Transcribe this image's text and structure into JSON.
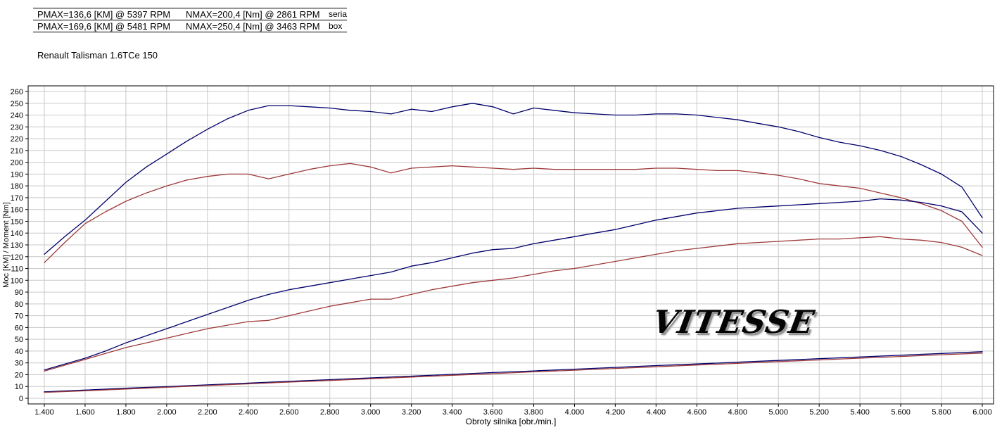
{
  "header": {
    "rows": [
      {
        "pmax": "PMAX=136,6 [KM] @ 5397 RPM",
        "nmax": "NMAX=200,4 [Nm] @ 2861 RPM",
        "tag": "seria"
      },
      {
        "pmax": "PMAX=169,6 [KM] @ 5481 RPM",
        "nmax": "NMAX=250,4 [Nm] @ 3463 RPM",
        "tag": "box"
      }
    ],
    "vehicle": "Renault Talisman 1.6TCe 150"
  },
  "watermark": {
    "text": "VITESSE"
  },
  "chart_data": {
    "type": "line",
    "title": "",
    "xlabel": "Obroty silnika [obr./min.]",
    "ylabel": "Moc [KM] / Moment [Nm]",
    "xlim": [
      1400,
      6000
    ],
    "ylim": [
      0,
      260
    ],
    "grid": true,
    "grid_color": "#c9c9c9",
    "axis_color": "#000000",
    "xticks": [
      1400,
      1600,
      1800,
      2000,
      2200,
      2400,
      2600,
      2800,
      3000,
      3200,
      3400,
      3600,
      3800,
      4000,
      4200,
      4400,
      4600,
      4800,
      5000,
      5200,
      5400,
      5600,
      5800,
      6000
    ],
    "xtick_labels": [
      "1.400",
      "1.600",
      "1.800",
      "2.000",
      "2.200",
      "2.400",
      "2.600",
      "2.800",
      "3.000",
      "3.200",
      "3.400",
      "3.600",
      "3.800",
      "4.000",
      "4.200",
      "4.400",
      "4.600",
      "4.800",
      "5.000",
      "5.200",
      "5.400",
      "5.600",
      "5.800",
      "6.000"
    ],
    "yticks": [
      0,
      10,
      20,
      30,
      40,
      50,
      60,
      70,
      80,
      90,
      100,
      110,
      120,
      130,
      140,
      150,
      160,
      170,
      180,
      190,
      200,
      210,
      220,
      230,
      240,
      250,
      260
    ],
    "x_main": [
      1400,
      1500,
      1600,
      1700,
      1800,
      1900,
      2000,
      2100,
      2200,
      2300,
      2400,
      2500,
      2600,
      2700,
      2800,
      2900,
      3000,
      3100,
      3200,
      3300,
      3400,
      3500,
      3600,
      3700,
      3800,
      3900,
      4000,
      4100,
      4200,
      4300,
      4400,
      4500,
      4600,
      4700,
      4800,
      4900,
      5000,
      5100,
      5200,
      5300,
      5400,
      5500,
      5600,
      5700,
      5800,
      5900,
      6000
    ],
    "x_aux": [
      1400,
      1600,
      1800,
      2000,
      2200,
      2400,
      2600,
      2800,
      3000,
      3200,
      3400,
      3600,
      3800,
      4000,
      4200,
      4400,
      4600,
      4800,
      5000,
      5200,
      5400,
      5600,
      5800,
      6000
    ],
    "series": [
      {
        "name": "moment-box",
        "color": "#00006b",
        "x": "x_main",
        "values": [
          122,
          137,
          151,
          167,
          183,
          196,
          207,
          218,
          228,
          237,
          244,
          248,
          248,
          247,
          246,
          244,
          243,
          241,
          245,
          243,
          247,
          250,
          247,
          241,
          246,
          244,
          242,
          241,
          240,
          240,
          241,
          241,
          240,
          238,
          236,
          233,
          230,
          226,
          221,
          217,
          214,
          210,
          205,
          198,
          190,
          179,
          153
        ]
      },
      {
        "name": "moment-seria",
        "color": "#9e3939",
        "x": "x_main",
        "values": [
          115,
          132,
          148,
          158,
          167,
          174,
          180,
          185,
          188,
          190,
          190,
          186,
          190,
          194,
          197,
          199,
          196,
          191,
          195,
          196,
          197,
          196,
          195,
          194,
          195,
          194,
          194,
          194,
          194,
          194,
          195,
          195,
          194,
          193,
          193,
          191,
          189,
          186,
          182,
          180,
          178,
          174,
          170,
          165,
          159,
          150,
          128
        ]
      },
      {
        "name": "moc-box",
        "color": "#00006b",
        "x": "x_main",
        "values": [
          24,
          29,
          34,
          40,
          47,
          53,
          59,
          65,
          71,
          77,
          83,
          88,
          92,
          95,
          98,
          101,
          104,
          107,
          112,
          115,
          119,
          123,
          126,
          127,
          131,
          134,
          137,
          140,
          143,
          147,
          151,
          154,
          157,
          159,
          161,
          162,
          163,
          164,
          165,
          166,
          167,
          169,
          168,
          166,
          163,
          158,
          140
        ]
      },
      {
        "name": "moc-seria",
        "color": "#9e3939",
        "x": "x_main",
        "values": [
          23,
          28,
          33,
          38,
          43,
          47,
          51,
          55,
          59,
          62,
          65,
          66,
          70,
          74,
          78,
          81,
          84,
          84,
          88,
          92,
          95,
          98,
          100,
          102,
          105,
          108,
          110,
          113,
          116,
          119,
          122,
          125,
          127,
          129,
          131,
          132,
          133,
          134,
          135,
          135,
          136,
          137,
          135,
          134,
          132,
          128,
          121
        ]
      },
      {
        "name": "aux-box",
        "color": "#00006b",
        "x": "x_aux",
        "values": [
          5.5,
          7.0,
          8.5,
          9.9,
          11.4,
          12.9,
          14.4,
          15.8,
          17.3,
          18.8,
          20.3,
          21.8,
          23.2,
          24.7,
          26.2,
          27.7,
          29.1,
          30.6,
          32.1,
          33.6,
          35.0,
          36.5,
          38.0,
          39.5
        ]
      },
      {
        "name": "aux-seria",
        "color": "#9e3939",
        "x": "x_aux",
        "values": [
          5.0,
          6.4,
          7.9,
          9.3,
          10.8,
          12.2,
          13.7,
          15.1,
          16.6,
          18.0,
          19.5,
          20.9,
          22.4,
          23.8,
          25.3,
          26.7,
          28.2,
          29.6,
          31.1,
          32.5,
          34.0,
          35.4,
          36.9,
          38.3
        ]
      }
    ]
  }
}
